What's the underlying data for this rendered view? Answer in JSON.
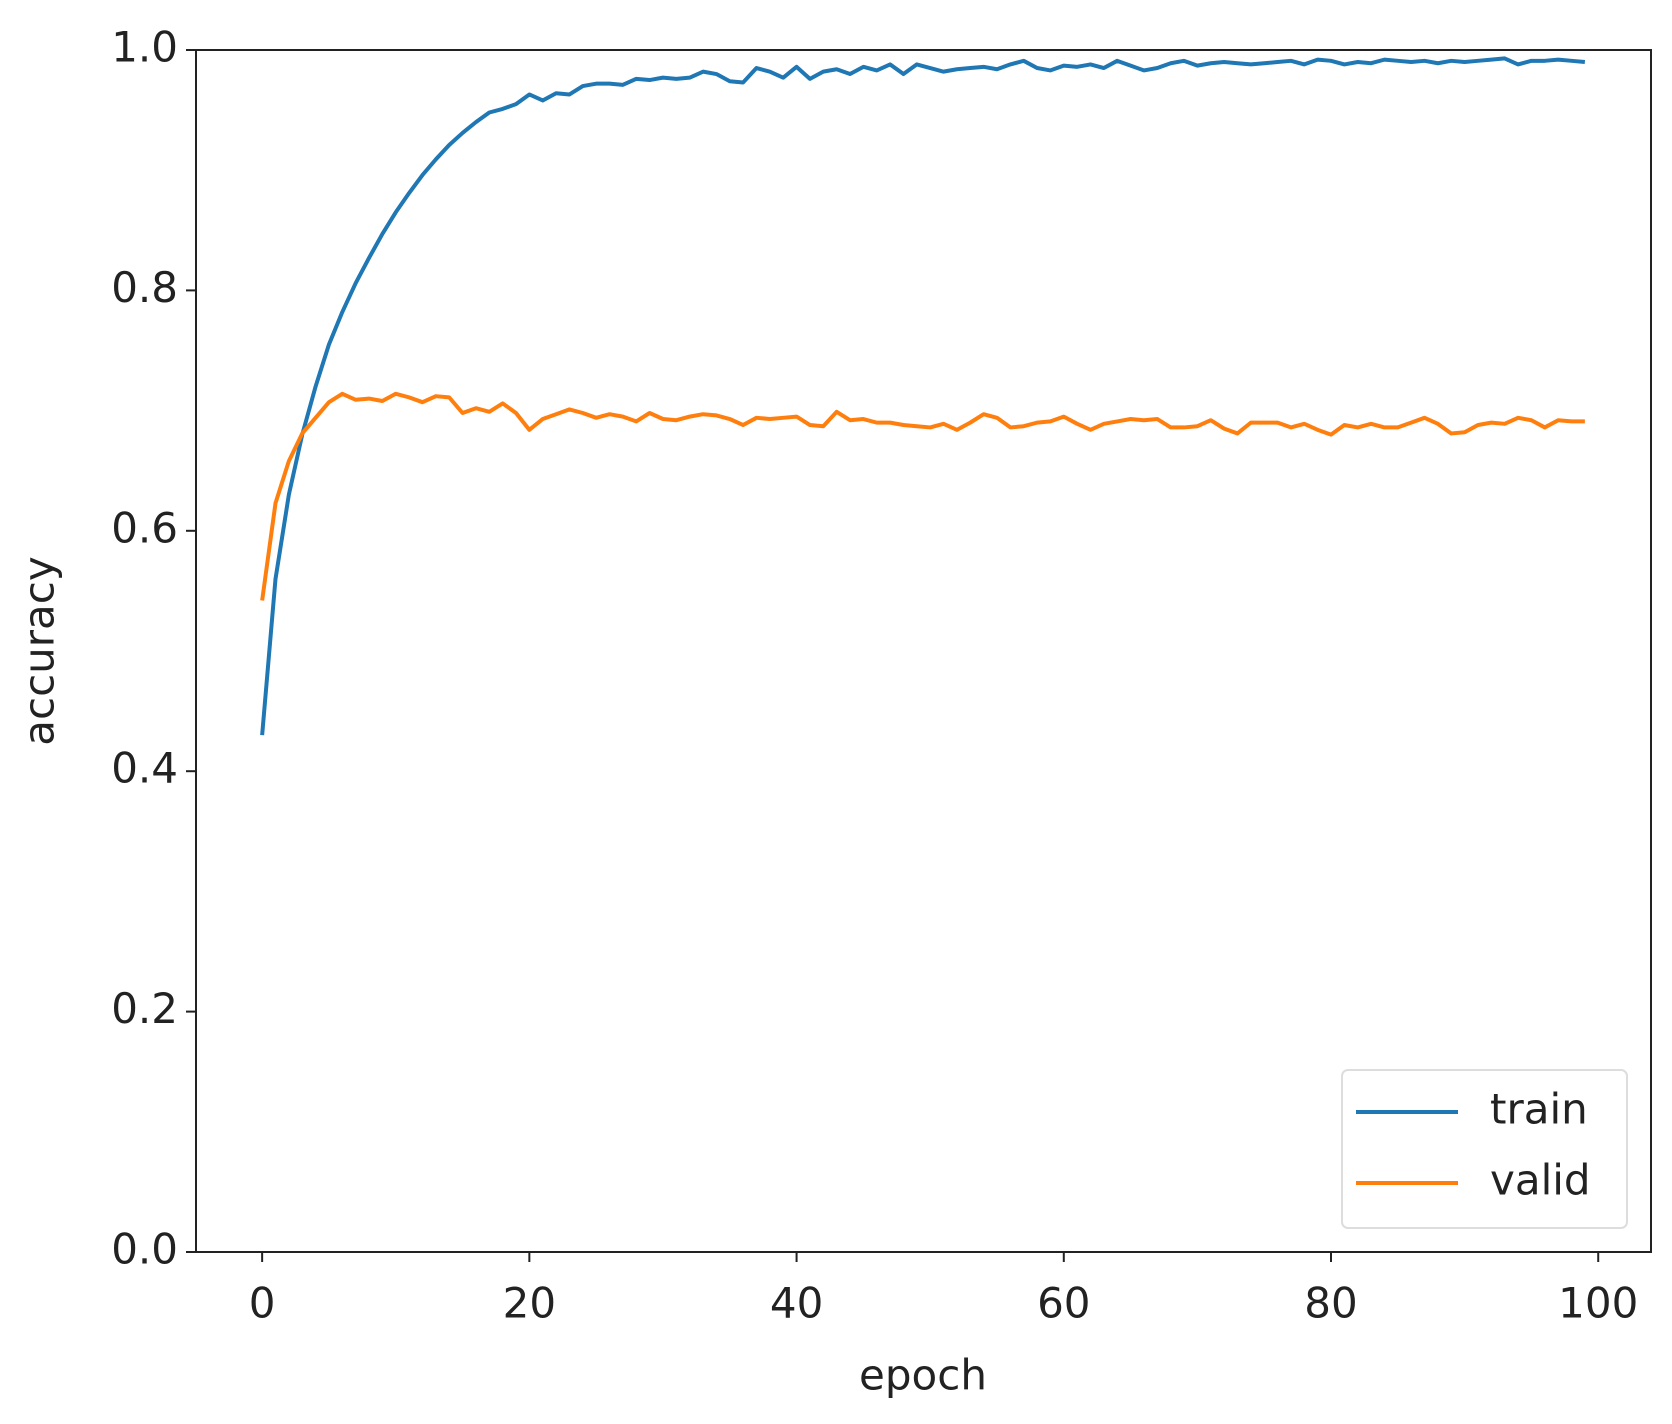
{
  "chart_data": {
    "type": "line",
    "xlabel": "epoch",
    "ylabel": "accuracy",
    "x": [
      0,
      1,
      2,
      3,
      4,
      5,
      6,
      7,
      8,
      9,
      10,
      11,
      12,
      13,
      14,
      15,
      16,
      17,
      18,
      19,
      20,
      21,
      22,
      23,
      24,
      25,
      26,
      27,
      28,
      29,
      30,
      31,
      32,
      33,
      34,
      35,
      36,
      37,
      38,
      39,
      40,
      41,
      42,
      43,
      44,
      45,
      46,
      47,
      48,
      49,
      50,
      51,
      52,
      53,
      54,
      55,
      56,
      57,
      58,
      59,
      60,
      61,
      62,
      63,
      64,
      65,
      66,
      67,
      68,
      69,
      70,
      71,
      72,
      73,
      74,
      75,
      76,
      77,
      78,
      79,
      80,
      81,
      82,
      83,
      84,
      85,
      86,
      87,
      88,
      89,
      90,
      91,
      92,
      93,
      94,
      95,
      96,
      97,
      98,
      99
    ],
    "series": [
      {
        "name": "train",
        "color": "#1f77b4",
        "values": [
          0.43,
          0.56,
          0.63,
          0.68,
          0.72,
          0.755,
          0.782,
          0.806,
          0.827,
          0.847,
          0.865,
          0.881,
          0.896,
          0.909,
          0.921,
          0.931,
          0.94,
          0.948,
          0.951,
          0.955,
          0.963,
          0.958,
          0.964,
          0.963,
          0.97,
          0.972,
          0.972,
          0.971,
          0.976,
          0.975,
          0.977,
          0.976,
          0.977,
          0.982,
          0.98,
          0.974,
          0.973,
          0.985,
          0.982,
          0.977,
          0.986,
          0.976,
          0.982,
          0.984,
          0.98,
          0.986,
          0.983,
          0.988,
          0.98,
          0.988,
          0.985,
          0.982,
          0.984,
          0.985,
          0.986,
          0.984,
          0.988,
          0.991,
          0.985,
          0.983,
          0.987,
          0.986,
          0.988,
          0.985,
          0.991,
          0.987,
          0.983,
          0.985,
          0.989,
          0.991,
          0.987,
          0.989,
          0.99,
          0.989,
          0.988,
          0.989,
          0.99,
          0.991,
          0.988,
          0.992,
          0.991,
          0.988,
          0.99,
          0.989,
          0.992,
          0.991,
          0.99,
          0.991,
          0.989,
          0.991,
          0.99,
          0.991,
          0.992,
          0.993,
          0.988,
          0.991,
          0.991,
          0.992,
          0.991,
          0.99
        ]
      },
      {
        "name": "valid",
        "color": "#ff7f0e",
        "values": [
          0.542,
          0.623,
          0.658,
          0.681,
          0.694,
          0.707,
          0.714,
          0.709,
          0.71,
          0.708,
          0.714,
          0.711,
          0.707,
          0.712,
          0.711,
          0.698,
          0.702,
          0.699,
          0.706,
          0.698,
          0.684,
          0.693,
          0.697,
          0.701,
          0.698,
          0.694,
          0.697,
          0.695,
          0.691,
          0.698,
          0.693,
          0.692,
          0.695,
          0.697,
          0.696,
          0.693,
          0.688,
          0.694,
          0.693,
          0.694,
          0.695,
          0.688,
          0.687,
          0.699,
          0.692,
          0.693,
          0.69,
          0.69,
          0.688,
          0.687,
          0.686,
          0.689,
          0.684,
          0.69,
          0.697,
          0.694,
          0.686,
          0.687,
          0.69,
          0.691,
          0.695,
          0.689,
          0.684,
          0.689,
          0.691,
          0.693,
          0.692,
          0.693,
          0.686,
          0.686,
          0.687,
          0.692,
          0.685,
          0.681,
          0.69,
          0.69,
          0.69,
          0.686,
          0.689,
          0.684,
          0.68,
          0.688,
          0.686,
          0.689,
          0.686,
          0.686,
          0.69,
          0.694,
          0.689,
          0.681,
          0.682,
          0.688,
          0.69,
          0.689,
          0.694,
          0.692,
          0.686,
          0.692,
          0.691,
          0.691
        ]
      }
    ],
    "xlim": [
      -4.95,
      103.95
    ],
    "xticks": [
      0,
      20,
      40,
      60,
      80,
      100
    ],
    "ylim": [
      0,
      1
    ],
    "yticks": [
      {
        "value": 0,
        "label": "0.0"
      },
      0.2,
      0.4,
      0.6,
      0.8,
      {
        "value": 1,
        "label": "1.0"
      }
    ],
    "grid": false,
    "legend": "lower right"
  }
}
